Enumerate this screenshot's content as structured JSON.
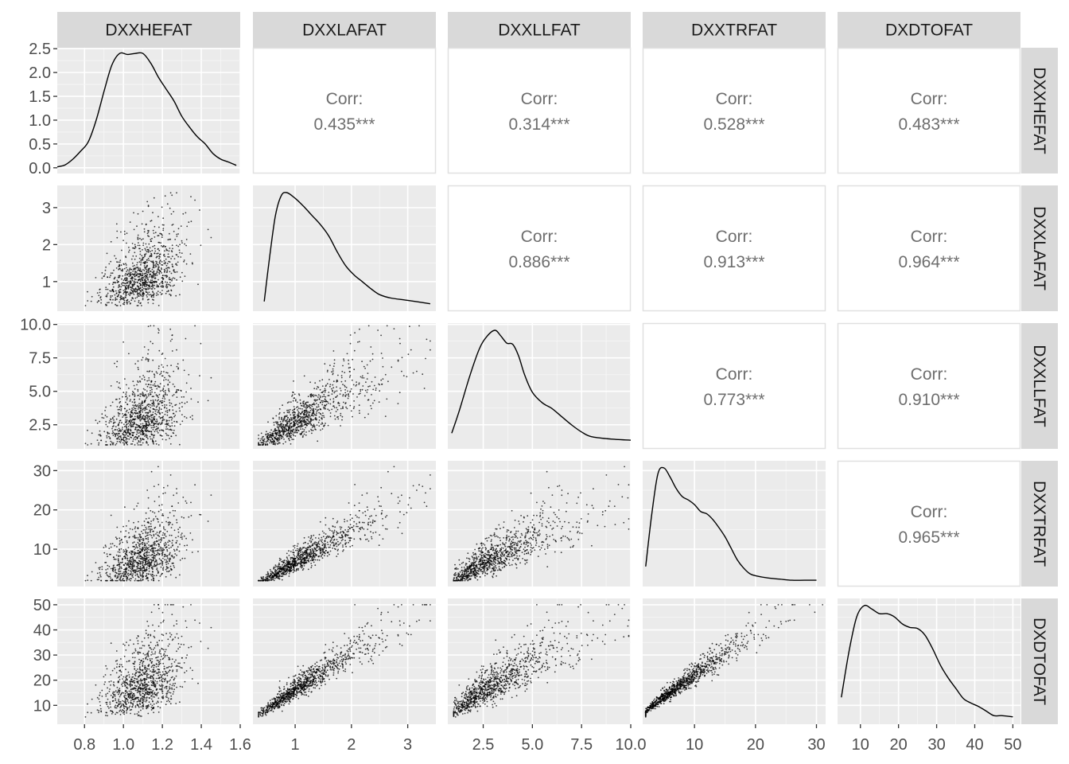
{
  "chart_data": {
    "type": "scatter",
    "variables": [
      "DXXHEFAT",
      "DXXLAFAT",
      "DXXLLFAT",
      "DXXTRFAT",
      "DXDTOFAT"
    ],
    "correlation_label": "Corr:",
    "correlations": [
      {
        "row": 0,
        "col": 1,
        "label": "0.435***",
        "value": 0.435
      },
      {
        "row": 0,
        "col": 2,
        "label": "0.314***",
        "value": 0.314
      },
      {
        "row": 0,
        "col": 3,
        "label": "0.528***",
        "value": 0.528
      },
      {
        "row": 0,
        "col": 4,
        "label": "0.483***",
        "value": 0.483
      },
      {
        "row": 1,
        "col": 2,
        "label": "0.886***",
        "value": 0.886
      },
      {
        "row": 1,
        "col": 3,
        "label": "0.913***",
        "value": 0.913
      },
      {
        "row": 1,
        "col": 4,
        "label": "0.964***",
        "value": 0.964
      },
      {
        "row": 2,
        "col": 3,
        "label": "0.773***",
        "value": 0.773
      },
      {
        "row": 2,
        "col": 4,
        "label": "0.910***",
        "value": 0.91
      },
      {
        "row": 3,
        "col": 4,
        "label": "0.965***",
        "value": 0.965
      }
    ],
    "x_axes": [
      {
        "lim": [
          0.66,
          1.6
        ],
        "ticks": [
          0.8,
          1.0,
          1.2,
          1.4,
          1.6
        ],
        "labels": [
          "0.8",
          "1.0",
          "1.2",
          "1.4",
          "1.6"
        ]
      },
      {
        "lim": [
          0.25,
          3.5
        ],
        "ticks": [
          1,
          2,
          3
        ],
        "labels": [
          "1",
          "2",
          "3"
        ]
      },
      {
        "lim": [
          0.7,
          10.0
        ],
        "ticks": [
          2.5,
          5.0,
          7.5,
          10.0
        ],
        "labels": [
          "2.5",
          "5.0",
          "7.5",
          "10.0"
        ]
      },
      {
        "lim": [
          1.5,
          31.5
        ],
        "ticks": [
          10,
          20,
          30
        ],
        "labels": [
          "10",
          "20",
          "30"
        ]
      },
      {
        "lim": [
          4,
          52
        ],
        "ticks": [
          10,
          20,
          30,
          40,
          50
        ],
        "labels": [
          "10",
          "20",
          "30",
          "40",
          "50"
        ]
      }
    ],
    "y_axes": [
      {
        "lim": [
          -0.12,
          2.52
        ],
        "ticks": [
          0,
          0.5,
          1.0,
          1.5,
          2.0,
          2.5
        ],
        "labels": [
          "0.0",
          "0.5",
          "1.0",
          "1.5",
          "2.0",
          "2.5"
        ]
      },
      {
        "lim": [
          0.2,
          3.6
        ],
        "ticks": [
          1,
          2,
          3
        ],
        "labels": [
          "1",
          "2",
          "3"
        ]
      },
      {
        "lim": [
          0.7,
          10.1
        ],
        "ticks": [
          2.5,
          5.0,
          7.5,
          10.0
        ],
        "labels": [
          "2.5",
          "5.0",
          "7.5",
          "10.0"
        ]
      },
      {
        "lim": [
          0.5,
          32.5
        ],
        "ticks": [
          10,
          20,
          30
        ],
        "labels": [
          "10",
          "20",
          "30"
        ]
      },
      {
        "lim": [
          2.5,
          52.5
        ],
        "ticks": [
          10,
          20,
          30,
          40,
          50
        ],
        "labels": [
          "10",
          "20",
          "30",
          "40",
          "50"
        ]
      }
    ],
    "densities": [
      {
        "var": "DXXHEFAT",
        "x": [
          0.66,
          0.7,
          0.74,
          0.78,
          0.82,
          0.86,
          0.9,
          0.94,
          0.98,
          1.02,
          1.06,
          1.1,
          1.14,
          1.18,
          1.22,
          1.26,
          1.3,
          1.34,
          1.38,
          1.42,
          1.46,
          1.5,
          1.54,
          1.58
        ],
        "y": [
          0.02,
          0.06,
          0.18,
          0.35,
          0.55,
          1.0,
          1.6,
          2.15,
          2.4,
          2.38,
          2.4,
          2.4,
          2.2,
          1.9,
          1.65,
          1.4,
          1.08,
          0.85,
          0.65,
          0.5,
          0.3,
          0.18,
          0.12,
          0.05
        ]
      },
      {
        "var": "DXXLAFAT",
        "x": [
          0.45,
          0.55,
          0.65,
          0.75,
          0.85,
          1.0,
          1.15,
          1.3,
          1.45,
          1.6,
          1.75,
          1.9,
          2.05,
          2.2,
          2.35,
          2.5,
          2.7,
          3.0,
          3.4
        ],
        "y": [
          0.05,
          0.45,
          0.8,
          0.97,
          1.0,
          0.95,
          0.88,
          0.8,
          0.72,
          0.62,
          0.48,
          0.36,
          0.28,
          0.22,
          0.16,
          0.11,
          0.08,
          0.06,
          0.03
        ]
      },
      {
        "var": "DXXLLFAT",
        "x": [
          0.9,
          1.3,
          1.8,
          2.3,
          2.7,
          3.1,
          3.4,
          3.7,
          4.0,
          4.3,
          4.6,
          5.0,
          5.5,
          6.0,
          6.5,
          7.0,
          7.5,
          8.0,
          9.0,
          10.0
        ],
        "y": [
          0.1,
          0.3,
          0.58,
          0.82,
          0.93,
          0.98,
          0.93,
          0.87,
          0.86,
          0.76,
          0.6,
          0.45,
          0.36,
          0.31,
          0.24,
          0.17,
          0.11,
          0.07,
          0.05,
          0.04
        ]
      },
      {
        "var": "DXXTRFAT",
        "x": [
          2,
          3,
          4,
          5,
          6,
          7,
          8,
          9,
          10,
          11,
          12,
          13,
          14,
          15,
          16,
          17,
          18,
          19,
          20,
          22,
          24,
          26,
          28,
          30
        ],
        "y": [
          0.14,
          0.6,
          0.95,
          1.0,
          0.92,
          0.82,
          0.75,
          0.72,
          0.68,
          0.62,
          0.6,
          0.55,
          0.48,
          0.4,
          0.3,
          0.2,
          0.13,
          0.08,
          0.06,
          0.04,
          0.03,
          0.02,
          0.02,
          0.02
        ]
      },
      {
        "var": "DXDTOFAT",
        "x": [
          5,
          7,
          9,
          11,
          13,
          15,
          17,
          19,
          21,
          23,
          25,
          27,
          29,
          31,
          33,
          35,
          37,
          39,
          41,
          43,
          45,
          47,
          50
        ],
        "y": [
          0.2,
          0.6,
          0.9,
          1.0,
          0.97,
          0.93,
          0.93,
          0.9,
          0.84,
          0.81,
          0.8,
          0.74,
          0.62,
          0.48,
          0.37,
          0.28,
          0.19,
          0.15,
          0.12,
          0.08,
          0.04,
          0.04,
          0.03
        ]
      }
    ],
    "scatter_points": 1000,
    "grid": true
  }
}
